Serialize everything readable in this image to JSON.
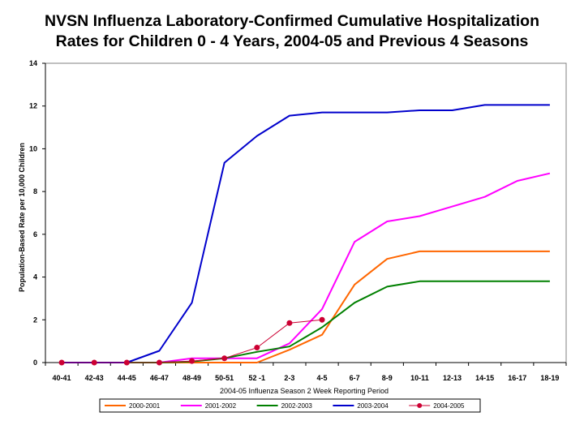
{
  "chart_data": {
    "type": "line",
    "title_lines": [
      "NVSN Influenza Laboratory-Confirmed Cumulative Hospitalization",
      "Rates for Children 0 - 4 Years, 2004-05 and Previous 4 Seasons"
    ],
    "xlabel": "2004-05 Influenza Season 2 Week Reporting Period",
    "ylabel": "Population-Based Rate per 10,000 Children",
    "ylim": [
      0,
      14
    ],
    "yticks": [
      0,
      2,
      4,
      6,
      8,
      10,
      12,
      14
    ],
    "categories": [
      "40-41",
      "42-43",
      "44-45",
      "46-47",
      "48-49",
      "50-51",
      "52 -1",
      "2-3",
      "4-5",
      "6-7",
      "8-9",
      "10-11",
      "12-13",
      "14-15",
      "16-17",
      "18-19"
    ],
    "grid": false,
    "legend_position": "bottom",
    "series": [
      {
        "name": "2000-2001",
        "color": "#FF6600",
        "markers": false,
        "values": [
          0,
          0,
          0,
          0,
          0,
          0,
          0,
          0.6,
          1.3,
          3.65,
          4.85,
          5.2,
          5.2,
          5.2,
          5.2,
          5.2
        ]
      },
      {
        "name": "2001-2002",
        "color": "#FF00FF",
        "markers": false,
        "values": [
          0,
          0,
          0,
          0,
          0.2,
          0.2,
          0.2,
          0.9,
          2.5,
          5.65,
          6.6,
          6.85,
          7.3,
          7.75,
          8.5,
          8.85
        ]
      },
      {
        "name": "2002-2003",
        "color": "#008000",
        "markers": false,
        "values": [
          0,
          0,
          0,
          0,
          0.05,
          0.2,
          0.5,
          0.75,
          1.65,
          2.8,
          3.55,
          3.8,
          3.8,
          3.8,
          3.8,
          3.8
        ]
      },
      {
        "name": "2003-2004",
        "color": "#0000CC",
        "markers": false,
        "values": [
          0,
          0,
          0,
          0.55,
          2.8,
          9.35,
          10.6,
          11.55,
          11.7,
          11.7,
          11.7,
          11.8,
          11.8,
          12.05,
          12.05,
          12.05
        ]
      },
      {
        "name": "2004-2005",
        "color": "#CC0033",
        "markers": true,
        "values": [
          0,
          0,
          0,
          0,
          0.07,
          0.2,
          0.7,
          1.85,
          2.0,
          null,
          null,
          null,
          null,
          null,
          null,
          null
        ]
      }
    ]
  }
}
